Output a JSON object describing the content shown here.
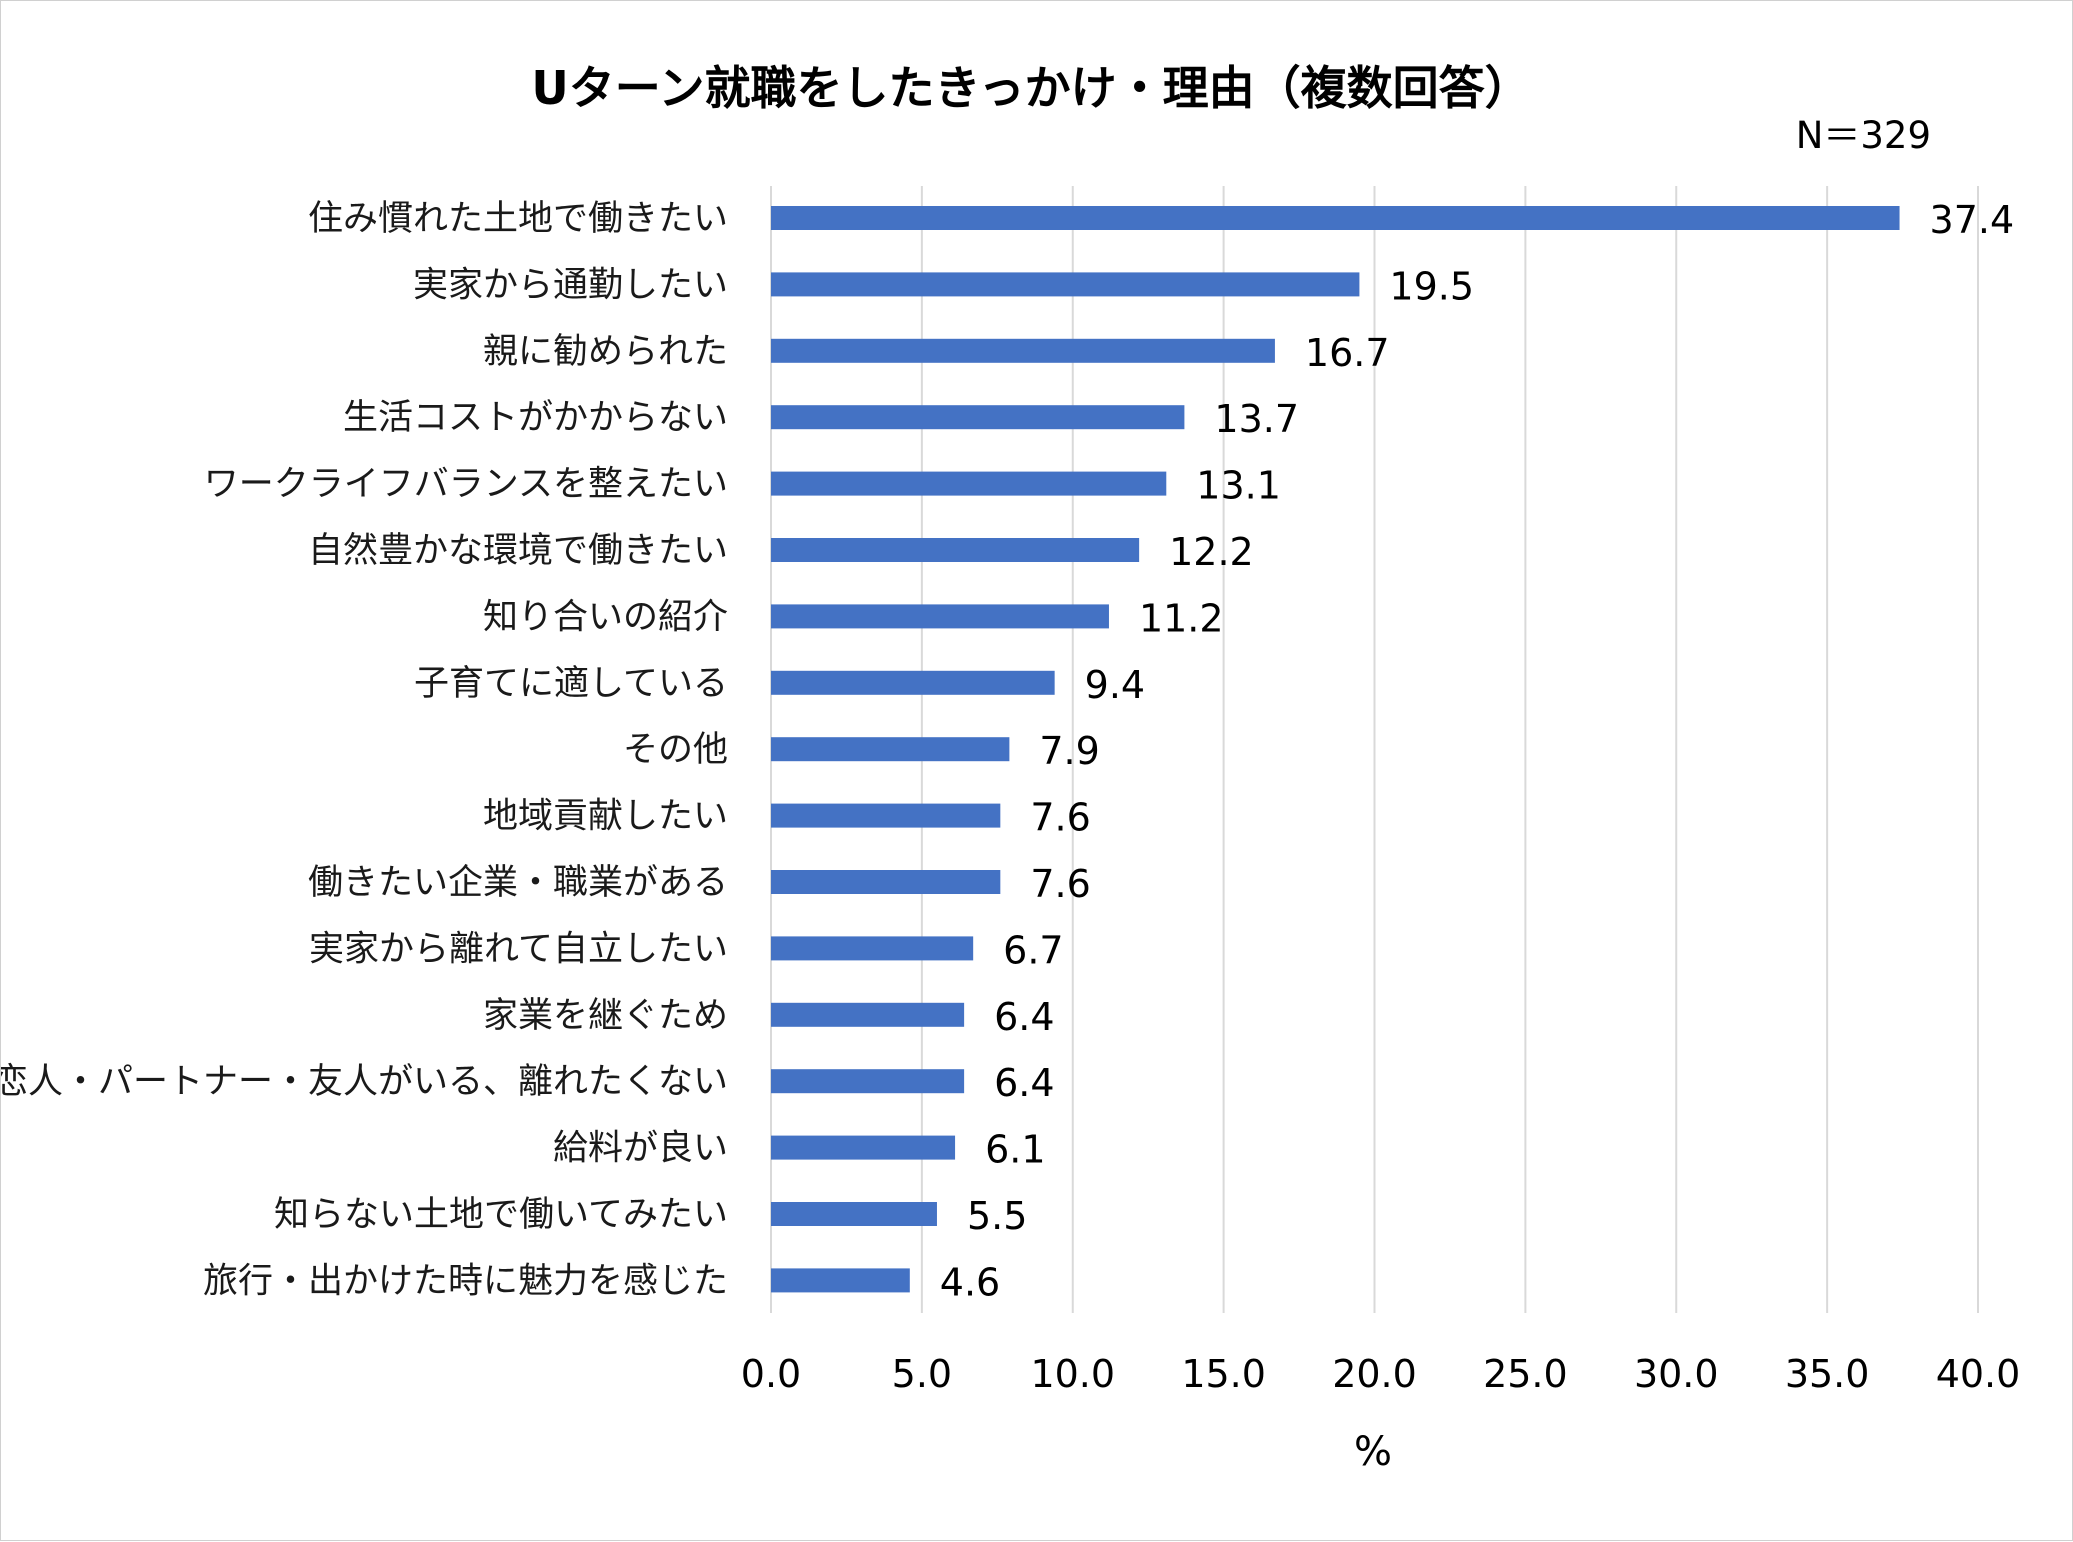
{
  "chart_data": {
    "type": "bar",
    "orientation": "horizontal",
    "title": "Uターン就職をしたきっかけ・理由（複数回答）",
    "note": "N＝329",
    "xlabel": "%",
    "ylabel": "",
    "xlim": [
      0,
      40
    ],
    "tick_values": [
      0,
      5,
      10,
      15,
      20,
      25,
      30,
      35,
      40
    ],
    "tick_labels": [
      "0.0",
      "5.0",
      "10.0",
      "15.0",
      "20.0",
      "25.0",
      "30.0",
      "35.0",
      "40.0"
    ],
    "grid": "vertical",
    "bar_color": "#4472c4",
    "categories": [
      "住み慣れた土地で働きたい",
      "実家から通勤したい",
      "親に勧められた",
      "生活コストがかからない",
      "ワークライフバランスを整えたい",
      "自然豊かな環境で働きたい",
      "知り合いの紹介",
      "子育てに適している",
      "その他",
      "地域貢献したい",
      "働きたい企業・職業がある",
      "実家から離れて自立したい",
      "家業を継ぐため",
      "恋人・パートナー・友人がいる、離れたくない",
      "給料が良い",
      "知らない土地で働いてみたい",
      "旅行・出かけた時に魅力を感じた"
    ],
    "values": [
      37.4,
      19.5,
      16.7,
      13.7,
      13.1,
      12.2,
      11.2,
      9.4,
      7.9,
      7.6,
      7.6,
      6.7,
      6.4,
      6.4,
      6.1,
      5.5,
      4.6
    ],
    "value_labels": [
      "37.4",
      "19.5",
      "16.7",
      "13.7",
      "13.1",
      "12.2",
      "11.2",
      "9.4",
      "7.9",
      "7.6",
      "7.6",
      "6.7",
      "6.4",
      "6.4",
      "6.1",
      "5.5",
      "4.6"
    ]
  }
}
